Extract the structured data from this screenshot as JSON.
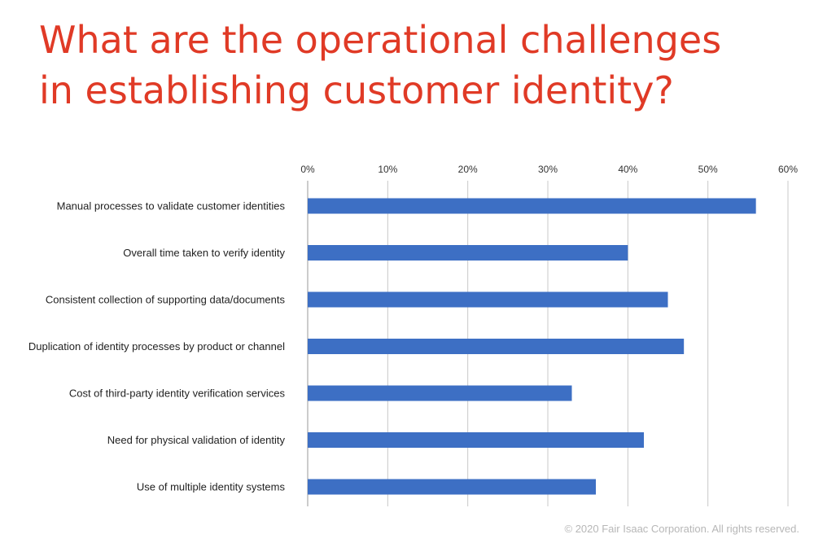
{
  "header": {
    "title_line1": "What are the operational challenges",
    "title_line2": "in establishing customer identity?"
  },
  "footer": {
    "copyright": "© 2020 Fair Isaac Corporation. All rights reserved."
  },
  "colors": {
    "title": "#e03a26",
    "bar": "#3d6fc4",
    "grid": "#c8c8c8",
    "copyright": "#b7b7b7"
  },
  "chart_data": {
    "type": "bar",
    "orientation": "horizontal",
    "title": "What are the operational challenges in establishing customer identity?",
    "xlabel": "",
    "ylabel": "",
    "xlim": [
      0,
      60
    ],
    "x_ticks": [
      0,
      10,
      20,
      30,
      40,
      50,
      60
    ],
    "x_tick_labels": [
      "0%",
      "10%",
      "20%",
      "30%",
      "40%",
      "50%",
      "60%"
    ],
    "x_axis_position": "top",
    "grid": true,
    "legend": "none",
    "categories": [
      "Manual processes to validate customer identities",
      "Overall time taken to verify identity",
      "Consistent collection of supporting data/documents",
      "Duplication of identity processes by product or channel",
      "Cost of third-party identity verification services",
      "Need for physical validation of identity",
      "Use of multiple identity systems"
    ],
    "values": [
      56,
      40,
      45,
      47,
      33,
      42,
      36
    ],
    "unit": "%"
  }
}
